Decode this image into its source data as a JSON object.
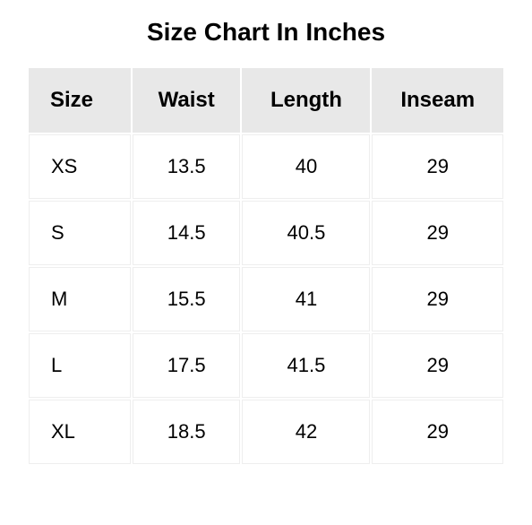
{
  "title": "Size Chart In Inches",
  "table": {
    "type": "table",
    "columns": [
      "Size",
      "Waist",
      "Length",
      "Inseam"
    ],
    "rows": [
      [
        "XS",
        "13.5",
        "40",
        "29"
      ],
      [
        "S",
        "14.5",
        "40.5",
        "29"
      ],
      [
        "M",
        "15.5",
        "41",
        "29"
      ],
      [
        "L",
        "17.5",
        "41.5",
        "29"
      ],
      [
        "XL",
        "18.5",
        "42",
        "29"
      ]
    ],
    "header_bg": "#e8e8e8",
    "cell_border": "#eeeeee",
    "title_fontsize": 28,
    "header_fontsize": 24,
    "cell_fontsize": 22,
    "text_color": "#000000",
    "background_color": "#ffffff",
    "column_align": [
      "left",
      "center",
      "center",
      "center"
    ]
  }
}
